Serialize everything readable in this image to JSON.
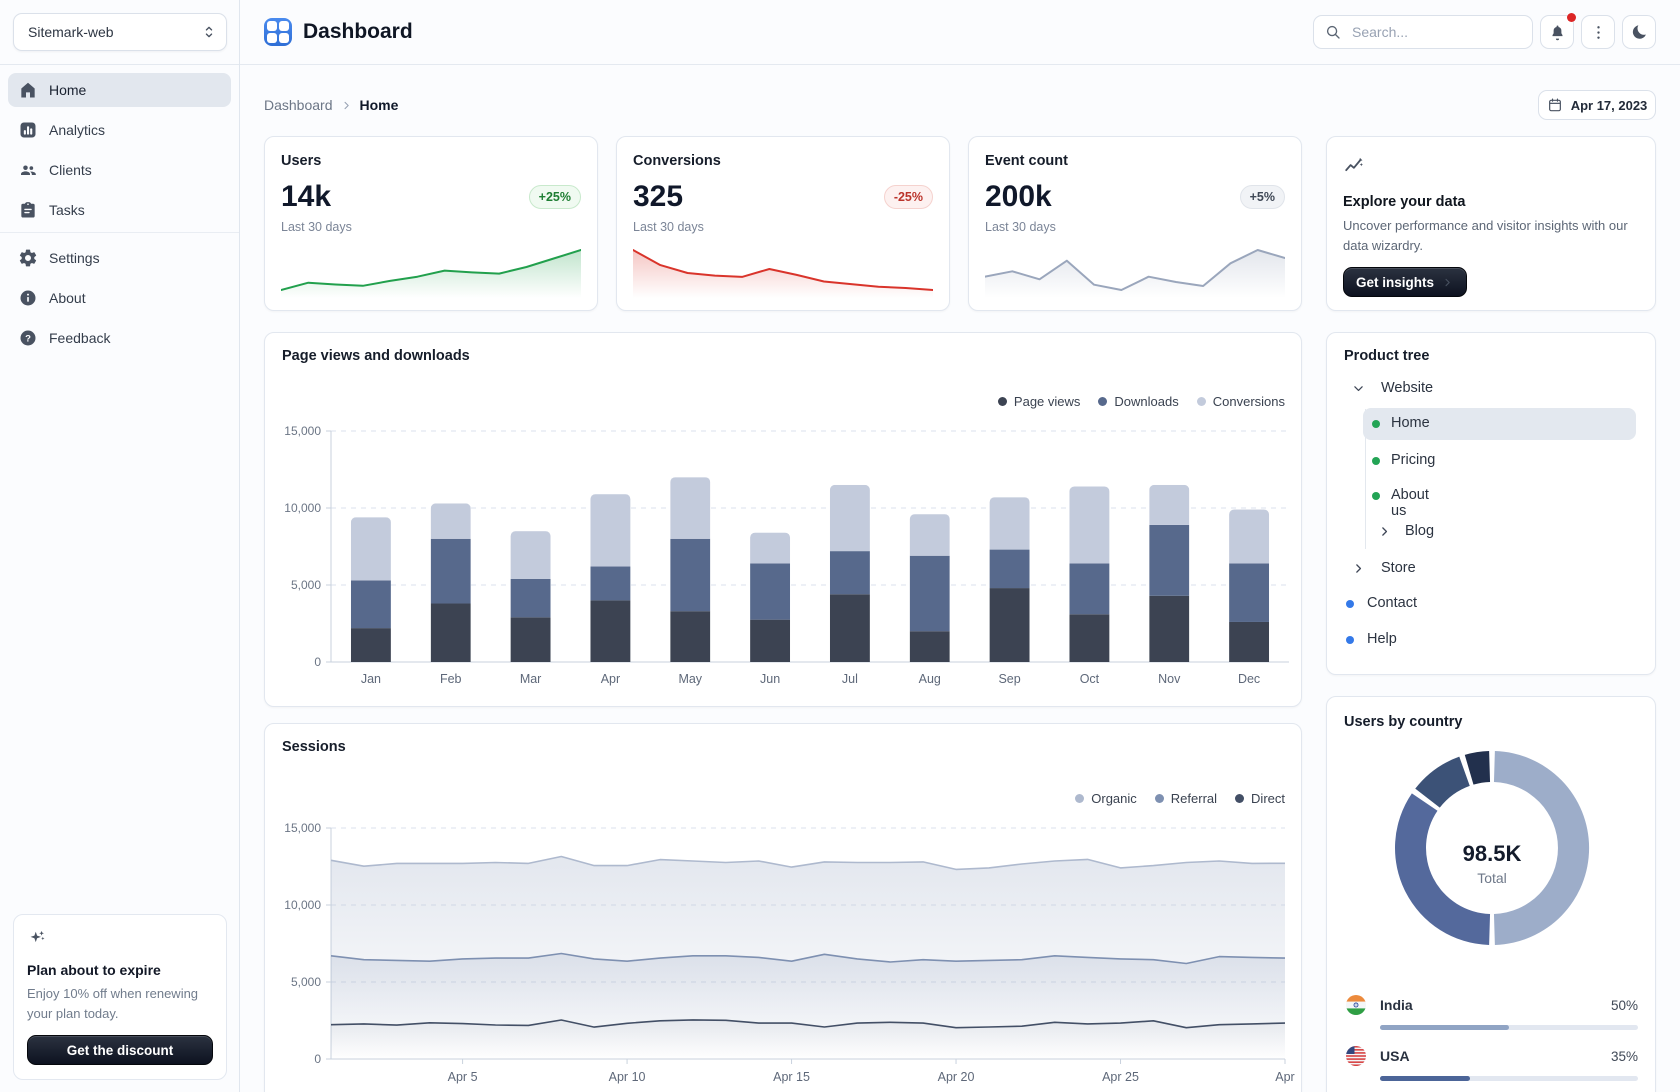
{
  "app": {
    "workspace": "Sitemark-web"
  },
  "topbar": {
    "title": "Dashboard",
    "search_placeholder": "Search...",
    "date": "Apr 17, 2023"
  },
  "breadcrumb": {
    "parent": "Dashboard",
    "current": "Home"
  },
  "sidebar": {
    "primary": [
      {
        "label": "Home",
        "icon": "home",
        "selected": true
      },
      {
        "label": "Analytics",
        "icon": "analytics",
        "selected": false
      },
      {
        "label": "Clients",
        "icon": "clients",
        "selected": false
      },
      {
        "label": "Tasks",
        "icon": "tasks",
        "selected": false
      }
    ],
    "secondary": [
      {
        "label": "Settings",
        "icon": "settings",
        "selected": false
      },
      {
        "label": "About",
        "icon": "info",
        "selected": false
      },
      {
        "label": "Feedback",
        "icon": "help",
        "selected": false
      }
    ],
    "plan_card": {
      "title": "Plan about to expire",
      "body": "Enjoy 10% off when renewing your plan today.",
      "cta": "Get the discount"
    }
  },
  "stat_cards": [
    {
      "title": "Users",
      "value": "14k",
      "caption": "Last 30 days",
      "badge": "+25%",
      "trend": "up",
      "color": "#22a04d",
      "spark": [
        30,
        42,
        39,
        37,
        45,
        52,
        62,
        59,
        57,
        68,
        82,
        96
      ]
    },
    {
      "title": "Conversions",
      "value": "325",
      "caption": "Last 30 days",
      "badge": "-25%",
      "trend": "down",
      "color": "#d9342b",
      "spark": [
        95,
        72,
        60,
        56,
        54,
        66,
        57,
        47,
        43,
        39,
        37,
        34
      ]
    },
    {
      "title": "Event count",
      "value": "200k",
      "caption": "Last 30 days",
      "badge": "+5%",
      "trend": "neutral",
      "color": "#9aa6bc",
      "spark": [
        52,
        56,
        50,
        64,
        46,
        42,
        52,
        48,
        45,
        62,
        72,
        66
      ]
    }
  ],
  "explore_card": {
    "title": "Explore your data",
    "body": "Uncover performance and visitor insights with our data wizardry.",
    "cta": "Get insights"
  },
  "product_tree": {
    "title": "Product tree",
    "items": [
      {
        "label": "Website",
        "glyph": "chevron-down",
        "level": 0,
        "selected": false
      },
      {
        "label": "Home",
        "glyph": "dot-green",
        "level": 1,
        "selected": true
      },
      {
        "label": "Pricing",
        "glyph": "dot-green",
        "level": 1,
        "selected": false
      },
      {
        "label": "About us",
        "glyph": "dot-green",
        "level": 1,
        "selected": false
      },
      {
        "label": "Blog",
        "glyph": "chevron-right",
        "level": 1,
        "selected": false
      },
      {
        "label": "Store",
        "glyph": "chevron-right",
        "level": 0,
        "selected": false
      },
      {
        "label": "Contact",
        "glyph": "dot-blue",
        "level": 0,
        "selected": false
      },
      {
        "label": "Help",
        "glyph": "dot-blue",
        "level": 0,
        "selected": false
      }
    ],
    "dot_colors": {
      "green": "#23a455",
      "blue": "#3479e8"
    }
  },
  "users_by_country": {
    "title": "Users by country",
    "total": "98.5K",
    "total_label": "Total",
    "rows": [
      {
        "country": "India",
        "pct": "50%",
        "value": 50,
        "flag": "india",
        "bar_color": "#90a4c4"
      },
      {
        "country": "USA",
        "pct": "35%",
        "value": 35,
        "flag": "usa",
        "bar_color": "#4c6598"
      }
    ]
  },
  "chart_data": [
    {
      "type": "bar",
      "stacked": true,
      "title": "Page views and downloads",
      "categories": [
        "Jan",
        "Feb",
        "Mar",
        "Apr",
        "May",
        "Jun",
        "Jul",
        "Aug",
        "Sep",
        "Oct",
        "Nov",
        "Dec"
      ],
      "series": [
        {
          "name": "Page views",
          "color": "#3c4352",
          "values": [
            2200,
            3800,
            2900,
            4000,
            3300,
            2750,
            4400,
            2000,
            4800,
            3100,
            4300,
            2600
          ]
        },
        {
          "name": "Downloads",
          "color": "#57698c",
          "values": [
            3100,
            4200,
            2500,
            2200,
            4700,
            3650,
            2800,
            4900,
            2500,
            3300,
            4600,
            3800
          ]
        },
        {
          "name": "Conversions",
          "color": "#c3cbdc",
          "values": [
            4100,
            2300,
            3100,
            4700,
            4000,
            2000,
            4300,
            2700,
            3400,
            5000,
            2600,
            3500
          ]
        }
      ],
      "ylim": [
        0,
        15000
      ],
      "yticks": [
        {
          "value": 0,
          "label": "0"
        },
        {
          "value": 5000,
          "label": "5,000"
        },
        {
          "value": 10000,
          "label": "10,000"
        },
        {
          "value": 15000,
          "label": "15,000"
        }
      ],
      "legend_position": "top-right",
      "grid": "dashed-horizontal"
    },
    {
      "type": "area",
      "title": "Sessions",
      "points": 30,
      "x_ticks": [
        {
          "index": 4,
          "label": "Apr 5"
        },
        {
          "index": 9,
          "label": "Apr 10"
        },
        {
          "index": 14,
          "label": "Apr 15"
        },
        {
          "index": 19,
          "label": "Apr 20"
        },
        {
          "index": 24,
          "label": "Apr 25"
        },
        {
          "index": 29,
          "label": "Apr"
        }
      ],
      "series": [
        {
          "name": "Organic",
          "color": "#aeb9ce",
          "fill": "#b3bed2",
          "values": [
            12900,
            12520,
            12700,
            12700,
            12700,
            12760,
            12700,
            13150,
            12560,
            12560,
            12950,
            12860,
            12760,
            12860,
            12460,
            12800,
            12760,
            12760,
            12800,
            12310,
            12410,
            12660,
            12860,
            12960,
            12410,
            12560,
            12760,
            12860,
            12700,
            12710
          ]
        },
        {
          "name": "Referral",
          "color": "#7e90b1",
          "fill": "#7f91b3",
          "values": [
            6700,
            6450,
            6400,
            6350,
            6500,
            6550,
            6550,
            6850,
            6500,
            6350,
            6550,
            6700,
            6700,
            6600,
            6350,
            6800,
            6500,
            6300,
            6450,
            6350,
            6400,
            6450,
            6700,
            6600,
            6500,
            6450,
            6200,
            6650,
            6600,
            6550
          ]
        },
        {
          "name": "Direct",
          "color": "#434f66",
          "fill": "#47536b",
          "values": [
            2230,
            2280,
            2200,
            2350,
            2300,
            2210,
            2180,
            2530,
            2070,
            2320,
            2480,
            2540,
            2510,
            2330,
            2330,
            2080,
            2330,
            2380,
            2330,
            2030,
            2080,
            2130,
            2380,
            2280,
            2330,
            2480,
            2030,
            2230,
            2280,
            2330
          ]
        }
      ],
      "ylim": [
        0,
        15000
      ],
      "yticks": [
        {
          "value": 0,
          "label": "0"
        },
        {
          "value": 5000,
          "label": "5,000"
        },
        {
          "value": 10000,
          "label": "10,000"
        },
        {
          "value": 15000,
          "label": "15,000"
        }
      ],
      "legend_position": "top-right",
      "grid": "dashed-horizontal"
    },
    {
      "type": "donut",
      "title": "Users by country",
      "center_value": "98.5K",
      "center_label": "Total",
      "segments": [
        {
          "label": "India",
          "value": 50,
          "color": "#9dadc9"
        },
        {
          "label": "USA",
          "value": 35,
          "color": "#54699c"
        },
        {
          "label": null,
          "value": 10,
          "color": "#3c5277"
        },
        {
          "label": null,
          "value": 5,
          "color": "#22304d"
        }
      ]
    }
  ]
}
